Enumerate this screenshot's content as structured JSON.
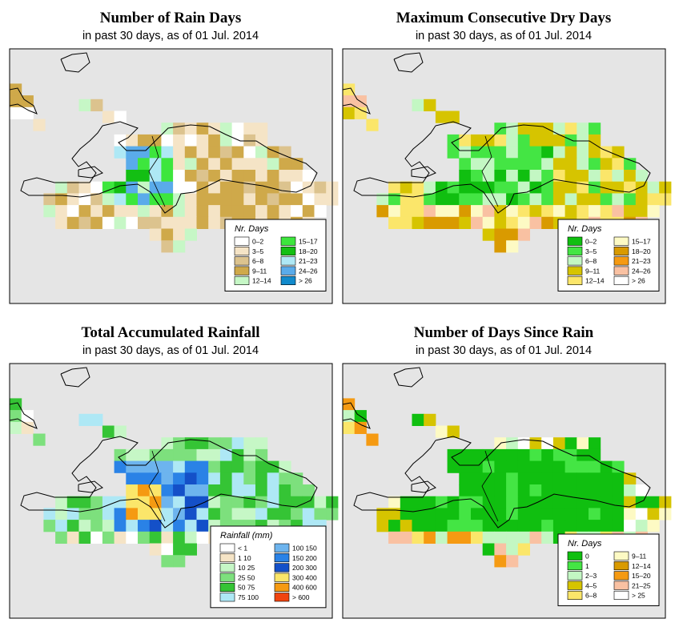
{
  "panels": [
    {
      "title": "Number of Rain Days",
      "subtitle": "in past 30 days, as of  01 Jul. 2014",
      "legend": {
        "title": "Nr. Days",
        "items": [
          {
            "label": "0–2",
            "color": "#ffffff"
          },
          {
            "label": "3–5",
            "color": "#f5e4c6"
          },
          {
            "label": "6–8",
            "color": "#dcc38e"
          },
          {
            "label": "9–11",
            "color": "#cfa94a"
          },
          {
            "label": "12–14",
            "color": "#c6f7c6"
          },
          {
            "label": "15–17",
            "color": "#3de63d"
          },
          {
            "label": "18–20",
            "color": "#13bf13"
          },
          {
            "label": "21–23",
            "color": "#aee8f5"
          },
          {
            "label": "24–26",
            "color": "#5aabea"
          },
          {
            "label": "> 26",
            "color": "#118acc"
          }
        ]
      }
    },
    {
      "title": "Maximum Consecutive Dry Days",
      "subtitle": "in past 30 days, as of  01 Jul. 2014",
      "legend": {
        "title": "Nr. Days",
        "items": [
          {
            "label": "0–2",
            "color": "#10bf10"
          },
          {
            "label": "3–5",
            "color": "#44e544"
          },
          {
            "label": "6–8",
            "color": "#c3f7c3"
          },
          {
            "label": "9–11",
            "color": "#d6c400"
          },
          {
            "label": "12–14",
            "color": "#fbe66a"
          },
          {
            "label": "15–17",
            "color": "#fdfac4"
          },
          {
            "label": "18–20",
            "color": "#d99a00"
          },
          {
            "label": "21–23",
            "color": "#f59a12"
          },
          {
            "label": "24–26",
            "color": "#f9c1a2"
          },
          {
            "label": "> 26",
            "color": "#ffffff"
          }
        ]
      }
    },
    {
      "title": "Total Accumulated Rainfall",
      "subtitle": "in past 30 days, as of  01 Jul. 2014",
      "legend": {
        "title": "Rainfall (mm)",
        "items": [
          {
            "label": "< 1",
            "color": "#ffffff"
          },
          {
            "label": "1    10",
            "color": "#f5e4c6"
          },
          {
            "label": "10    25",
            "color": "#c6f7c6"
          },
          {
            "label": "25    50",
            "color": "#7de07d"
          },
          {
            "label": "50    75",
            "color": "#35c435"
          },
          {
            "label": "75  100",
            "color": "#aee8f5"
          },
          {
            "label": "100  150",
            "color": "#6db4ee"
          },
          {
            "label": "150  200",
            "color": "#2a82e6"
          },
          {
            "label": "200  300",
            "color": "#1450c8"
          },
          {
            "label": "300  400",
            "color": "#fbe66a"
          },
          {
            "label": "400  600",
            "color": "#f59a12"
          },
          {
            "label": "> 600",
            "color": "#f04410"
          }
        ]
      }
    },
    {
      "title": "Number of Days Since Rain",
      "subtitle": "in past 30 days, as of  01 Jul. 2014",
      "legend": {
        "title": "Nr. Days",
        "items": [
          {
            "label": "0",
            "color": "#10bf10"
          },
          {
            "label": "1",
            "color": "#44e544"
          },
          {
            "label": "2–3",
            "color": "#c3f7c3"
          },
          {
            "label": "4–5",
            "color": "#d6c400"
          },
          {
            "label": "6–8",
            "color": "#fbe66a"
          },
          {
            "label": "9–11",
            "color": "#fdfac4"
          },
          {
            "label": "12–14",
            "color": "#d99a00"
          },
          {
            "label": "15–20",
            "color": "#f59a12"
          },
          {
            "label": "21–25",
            "color": "#f9c1a2"
          },
          {
            "label": "> 25",
            "color": "#ffffff"
          }
        ]
      }
    }
  ],
  "colors": {
    "background": "#e5e5e5",
    "frame": "#000000",
    "coast": "#000000"
  }
}
